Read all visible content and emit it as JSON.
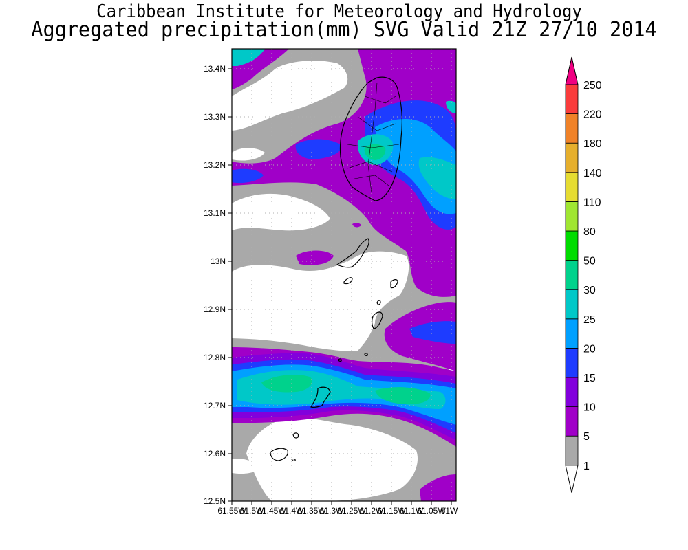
{
  "header": {
    "institute": "Caribbean Institute for Meteorology and Hydrology",
    "product": "Aggregated precipitation(mm) SVG Valid 21Z 27/10 2014"
  },
  "map": {
    "lat_labels": [
      "13.4N",
      "13.3N",
      "13.2N",
      "13.1N",
      "13N",
      "12.9N",
      "12.8N",
      "12.7N",
      "12.6N",
      "12.5N"
    ],
    "lon_labels": [
      "61.55W",
      "61.5W",
      "61.45W",
      "61.4W",
      "61.35W",
      "61.3W",
      "61.25W",
      "61.2W",
      "61.15W",
      "61.1W",
      "61.05W",
      "61W"
    ]
  },
  "colorbar": {
    "labels": [
      "1",
      "5",
      "10",
      "15",
      "20",
      "25",
      "30",
      "50",
      "80",
      "110",
      "140",
      "180",
      "220",
      "250"
    ],
    "colors": [
      "#a9a9a9",
      "#a000c8",
      "#8200dc",
      "#1e3cff",
      "#00a0ff",
      "#00c8c8",
      "#00d28c",
      "#00dc00",
      "#a0e632",
      "#e6dc32",
      "#e6af2d",
      "#f08228",
      "#fa3c3c",
      "#f00082"
    ]
  },
  "legend_colors": {
    "lt1": "#ffffff",
    "c1_5": "#a9a9a9",
    "c5_10": "#a000c8",
    "c10_15": "#8200dc",
    "c15_20": "#1e3cff",
    "c20_25": "#00a0ff",
    "c25_30": "#00c8c8"
  }
}
